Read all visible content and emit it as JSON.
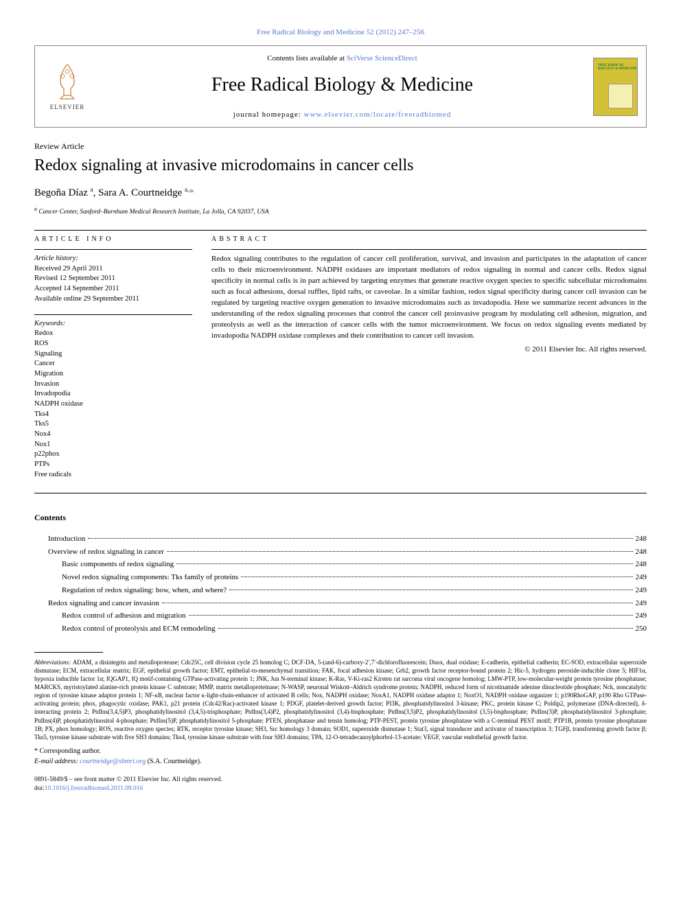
{
  "top_link": "Free Radical Biology and Medicine 52 (2012) 247–256",
  "header": {
    "contents_prefix": "Contents lists available at ",
    "contents_link": "SciVerse ScienceDirect",
    "journal": "Free Radical Biology & Medicine",
    "homepage_prefix": "journal homepage: ",
    "homepage_link": "www.elsevier.com/locate/freeradbiomed",
    "elsevier": "ELSEVIER",
    "cover_text": "FREE\nRADICAL\nBIOLOGY &\nMEDICINE"
  },
  "article": {
    "type": "Review Article",
    "title": "Redox signaling at invasive microdomains in cancer cells",
    "authors_html": "Begoña Díaz",
    "author2": "Sara A. Courtneidge",
    "aff_marker": "a",
    "corr_marker": "*",
    "affiliation": "Cancer Center, Sanford–Burnham Medical Research Institute, La Jolla, CA 92037, USA"
  },
  "info": {
    "article_info_head": "article info",
    "abstract_head": "abstract",
    "history_label": "Article history:",
    "received": "Received 29 April 2011",
    "revised": "Revised 12 September 2011",
    "accepted": "Accepted 14 September 2011",
    "online": "Available online 29 September 2011",
    "keywords_label": "Keywords:",
    "keywords": [
      "Redox",
      "ROS",
      "Signaling",
      "Cancer",
      "Migration",
      "Invasion",
      "Invadopodia",
      "NADPH oxidase",
      "Tks4",
      "Tks5",
      "Nox4",
      "Nox1",
      "p22phox",
      "PTPs",
      "Free radicals"
    ]
  },
  "abstract": "Redox signaling contributes to the regulation of cancer cell proliferation, survival, and invasion and participates in the adaptation of cancer cells to their microenvironment. NADPH oxidases are important mediators of redox signaling in normal and cancer cells. Redox signal specificity in normal cells is in part achieved by targeting enzymes that generate reactive oxygen species to specific subcellular microdomains such as focal adhesions, dorsal ruffles, lipid rafts, or caveolae. In a similar fashion, redox signal specificity during cancer cell invasion can be regulated by targeting reactive oxygen generation to invasive microdomains such as invadopodia. Here we summarize recent advances in the understanding of the redox signaling processes that control the cancer cell proinvasive program by modulating cell adhesion, migration, and proteolysis as well as the interaction of cancer cells with the tumor microenvironment. We focus on redox signaling events mediated by invadopodia NADPH oxidase complexes and their contribution to cancer cell invasion.",
  "copyright": "© 2011 Elsevier Inc. All rights reserved.",
  "contents": {
    "title": "Contents",
    "items": [
      {
        "text": "Introduction",
        "page": "248",
        "indent": 1
      },
      {
        "text": "Overview of redox signaling in cancer",
        "page": "248",
        "indent": 1
      },
      {
        "text": "Basic components of redox signaling",
        "page": "248",
        "indent": 2
      },
      {
        "text": "Novel redox signaling components: Tks family of proteins",
        "page": "249",
        "indent": 2
      },
      {
        "text": "Regulation of redox signaling: how, when, and where?",
        "page": "249",
        "indent": 2
      },
      {
        "text": "Redox signaling and cancer invasion",
        "page": "249",
        "indent": 1
      },
      {
        "text": "Redox control of adhesion and migration",
        "page": "249",
        "indent": 2
      },
      {
        "text": "Redox control of proteolysis and ECM remodeling",
        "page": "250",
        "indent": 2
      }
    ]
  },
  "abbreviations": {
    "label": "Abbreviations:",
    "text": "ADAM, a disintegrin and metalloprotease; Cdc25C, cell division cycle 25 homolog C; DCF-DA, 5-(and-6)-carboxy-2′,7′-dichlorofluorescein; Duox, dual oxidase; E-cadherin, epithelial cadherin; EC-SOD, extracellular superoxide dismutase; ECM, extracellular matrix; EGF, epithelial growth factor; EMT, epithelial-to-mesenchymal transition; FAK, focal adhesion kinase; Grb2, growth factor receptor-bound protein 2; Hic-5, hydrogen peroxide-inducible clone 5; HIF1α, hypoxia inducible factor 1α; IQGAP1, IQ motif-containing GTPase-activating protein 1; JNK, Jun N-terminal kinase; K-Ras, V-Ki-ras2 Kirsten rat sarcoma viral oncogene homolog; LMW-PTP, low-molecular-weight protein tyrosine phosphatase; MARCKS, myristoylated alanine-rich protein kinase C substrate; MMP, matrix metalloproteinase; N-WASP, neuronal Wiskott–Aldrich syndrome protein; NADPH, reduced form of nicotinamide adenine dinucleotide phosphate; Nck, noncatalytic region of tyrosine kinase adaptor protein 1; NF-κB, nuclear factor κ-light-chain-enhancer of activated B cells; Nox, NADPH oxidase; NoxA1, NADPH oxidase adaptor 1; NoxO1, NADPH oxidase organizer 1; p190RhoGAP, p190 Rho GTPase-activating protein; phox, phagocytic oxidase; PAK1, p21 protein (Cdc42/Rac)-activated kinase 1; PDGF, platelet-derived growth factor; PI3K, phosphatidylinositol 3-kinase; PKC, protein kinase C; Poldip2, polymerase (DNA-directed), δ-interacting protein 2; PtdIns(3,4,5)P3, phosphatidylinositol (3,4,5)-trisphosphate; PtdIns(3,4)P2, phosphatidylinositol (3,4)-bisphosphate; PtdIns(3,5)P2, phosphatidylinositol (3,5)-bisphosphate; PtdIns(3)P, phosphatidylinositol 3-phosphate; PtdIns(4)P, phosphatidylinositol 4-phosphate; PtdIns(5)P, phosphatidylinositol 5-phosphate; PTEN, phosphatase and tensin homolog; PTP-PEST, protein tyrosine phosphatase with a C-terminal PEST motif; PTP1B, protein tyrosine phosphatase 1B; PX, phox homology; ROS, reactive oxygen species; RTK, receptor tyrosine kinase; SH3, Src homology 3 domain; SOD1, superoxide dismutase 1; Stat3, signal transducer and activator of transcription 3; TGFβ, transforming growth factor β; Tks5, tyrosine kinase substrate with five SH3 domains; Tks4, tyrosine kinase substrate with four SH3 domains; TPA, 12-O-tetradecanoylphorbol-13-acetate; VEGF, vascular endothelial growth factor."
  },
  "corr": {
    "label": "* Corresponding author.",
    "email_label": "E-mail address:",
    "email": "courtneidge@sbmri.org",
    "email_name": "(S.A. Courtneidge)."
  },
  "bottom": {
    "issn": "0891-5849/$ – see front matter © 2011 Elsevier Inc. All rights reserved.",
    "doi_prefix": "doi:",
    "doi": "10.1016/j.freeradbiomed.2011.09.016"
  },
  "colors": {
    "link": "#5577cc",
    "cover_bg": "#d4c136",
    "cover_green": "#1a7a3a"
  }
}
